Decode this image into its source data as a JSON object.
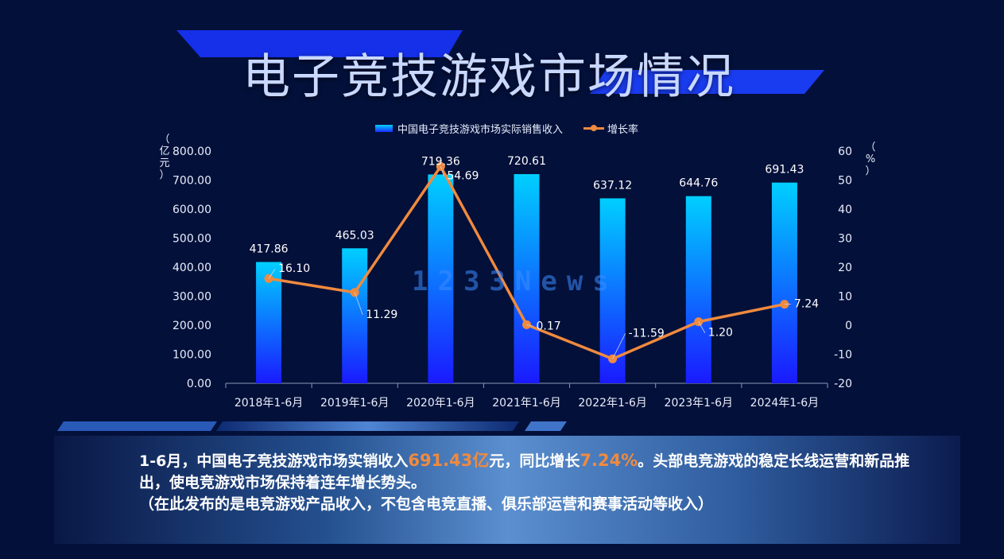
{
  "title": "电子竞技游戏市场情况",
  "unit_left": "（亿元）",
  "unit_right": "（%）",
  "watermark": "1233News",
  "colors": {
    "bar_top": "#00cfff",
    "bar_bottom": "#1a1aff",
    "line": "#f08a3e",
    "background": "#03103a",
    "highlight": "#f08a3e"
  },
  "chart_data": {
    "type": "bar",
    "categories": [
      "2018年1-6月",
      "2019年1-6月",
      "2020年1-6月",
      "2021年1-6月",
      "2022年1-6月",
      "2023年1-6月",
      "2024年1-6月"
    ],
    "series": [
      {
        "name": "中国电子竞技游戏市场实际销售收入",
        "type": "bar",
        "axis": "left",
        "values": [
          417.86,
          465.03,
          719.36,
          720.61,
          637.12,
          644.76,
          691.43
        ],
        "labels": [
          "417.86",
          "465.03",
          "719.36",
          "720.61",
          "637.12",
          "644.76",
          "691.43"
        ]
      },
      {
        "name": "增长率",
        "type": "line",
        "axis": "right",
        "values": [
          16.1,
          11.29,
          54.69,
          0.17,
          -11.59,
          1.2,
          7.24
        ],
        "labels": [
          "16.10",
          "11.29",
          "54.69",
          "0.17",
          "-11.59",
          "1.20",
          "7.24"
        ]
      }
    ],
    "y_left": {
      "lim": [
        0,
        800
      ],
      "ticks": [
        "0.00",
        "100.00",
        "200.00",
        "300.00",
        "400.00",
        "500.00",
        "600.00",
        "700.00",
        "800.00"
      ]
    },
    "y_right": {
      "lim": [
        -20,
        60
      ],
      "ticks": [
        "-20",
        "-10",
        "0",
        "10",
        "20",
        "30",
        "40",
        "50",
        "60"
      ]
    },
    "legend": "top",
    "grid": false
  },
  "info": {
    "p1_a": "1-6月，中国电子竞技游戏市场实销收入",
    "p1_hl1": "691.43亿",
    "p1_b": "元，同比增长",
    "p1_hl2": "7.24%",
    "p1_c": "。头部电竞游戏的稳定长线运营和新品推出，使电竞游戏市场保持着连年增长势头。",
    "p2": "（在此发布的是电竞游戏产品收入，不包含电竞直播、俱乐部运营和赛事活动等收入）"
  }
}
